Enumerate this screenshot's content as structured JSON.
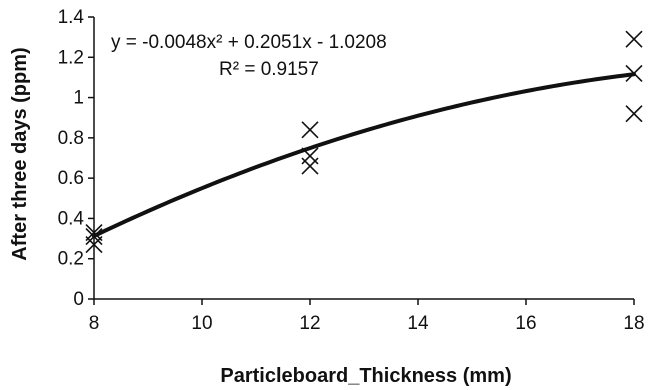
{
  "chart_data": {
    "type": "scatter",
    "title": "",
    "xlabel": "Particleboard_Thickness (mm)",
    "ylabel": "After three days (ppm)",
    "xlim": [
      8,
      18
    ],
    "ylim": [
      0,
      1.4
    ],
    "x_ticks": [
      "8",
      "10",
      "12",
      "14",
      "16",
      "18"
    ],
    "y_ticks": [
      "0",
      "0.2",
      "0.4",
      "0.6",
      "0.8",
      "1",
      "1.2",
      "1.4"
    ],
    "grid": false,
    "series": [
      {
        "marker": "x",
        "points": [
          {
            "x": 8,
            "y": 0.27
          },
          {
            "x": 8,
            "y": 0.31
          },
          {
            "x": 8,
            "y": 0.33
          },
          {
            "x": 12,
            "y": 0.66
          },
          {
            "x": 12,
            "y": 0.71
          },
          {
            "x": 12,
            "y": 0.84
          },
          {
            "x": 18,
            "y": 0.92
          },
          {
            "x": 18,
            "y": 1.12
          },
          {
            "x": 18,
            "y": 1.29
          }
        ]
      }
    ],
    "trendline": {
      "type": "polynomial",
      "coefficients": {
        "a": -0.0048,
        "b": 0.2051,
        "c": -1.0208
      },
      "equation_label": "y = -0.0048x² + 0.2051x - 1.0208",
      "r2_label": "R² = 0.9157"
    }
  }
}
